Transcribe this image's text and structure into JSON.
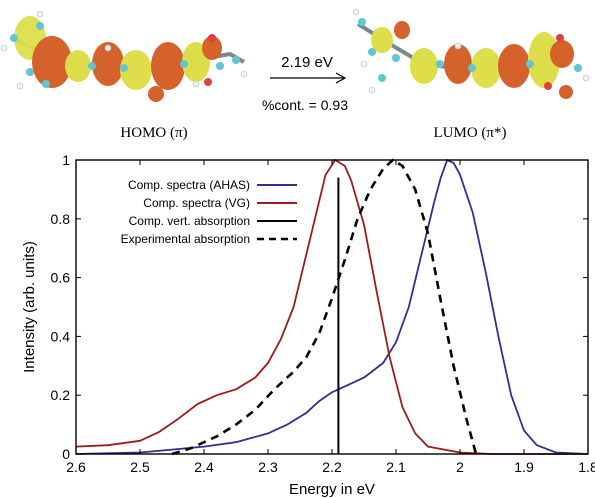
{
  "header": {
    "transition_label": "2.19 eV",
    "contribution_label": "%cont. = 0.93",
    "homo_label": "HOMO (π)",
    "lumo_label": "LUMO (π*)"
  },
  "colors": {
    "ahas": "#2f2f96",
    "vg": "#9a1c1c",
    "vertical": "#000000",
    "experimental": "#000000",
    "orbital_orange": "#d4622a",
    "orbital_yellow": "#dede4a",
    "atom_carbon": "#5fc6d4",
    "atom_oxygen": "#e04040",
    "atom_hydrogen": "#f2f2f2"
  },
  "chart_data": {
    "type": "line",
    "title": "",
    "xlabel": "Energy in eV",
    "ylabel": "Intensity (arb. units)",
    "xlim": [
      2.6,
      1.8
    ],
    "ylim": [
      0,
      1
    ],
    "x_reversed": true,
    "x_ticks": [
      "2.6",
      "2.5",
      "2.4",
      "2.3",
      "2.2",
      "2.1",
      "2",
      "1.9",
      "1.8"
    ],
    "y_ticks": [
      "0",
      "0.2",
      "0.4",
      "0.6",
      "0.8",
      "1"
    ],
    "grid": false,
    "legend_position": "top-left",
    "legend": [
      {
        "label": "Comp. spectra (AHAS)",
        "style": "solid",
        "color": "#2f2f96"
      },
      {
        "label": "Comp. spectra (VG)",
        "style": "solid",
        "color": "#9a1c1c"
      },
      {
        "label": "Comp. vert. absorption",
        "style": "solid",
        "color": "#000000"
      },
      {
        "label": "Experimental absorption",
        "style": "dashed",
        "color": "#000000"
      }
    ],
    "series": [
      {
        "name": "Comp. spectra (AHAS)",
        "style": "solid",
        "color": "#2f2f96",
        "points": [
          [
            2.6,
            0.0
          ],
          [
            2.5,
            0.005
          ],
          [
            2.45,
            0.015
          ],
          [
            2.4,
            0.025
          ],
          [
            2.35,
            0.04
          ],
          [
            2.3,
            0.07
          ],
          [
            2.27,
            0.1
          ],
          [
            2.24,
            0.14
          ],
          [
            2.22,
            0.18
          ],
          [
            2.2,
            0.21
          ],
          [
            2.18,
            0.23
          ],
          [
            2.15,
            0.26
          ],
          [
            2.12,
            0.31
          ],
          [
            2.1,
            0.38
          ],
          [
            2.08,
            0.5
          ],
          [
            2.06,
            0.68
          ],
          [
            2.04,
            0.86
          ],
          [
            2.03,
            0.94
          ],
          [
            2.02,
            1.0
          ],
          [
            2.01,
            0.99
          ],
          [
            2.0,
            0.95
          ],
          [
            1.98,
            0.82
          ],
          [
            1.96,
            0.62
          ],
          [
            1.94,
            0.4
          ],
          [
            1.92,
            0.2
          ],
          [
            1.9,
            0.08
          ],
          [
            1.88,
            0.03
          ],
          [
            1.85,
            0.005
          ],
          [
            1.8,
            0.0
          ]
        ]
      },
      {
        "name": "Comp. spectra (VG)",
        "style": "solid",
        "color": "#9a1c1c",
        "points": [
          [
            2.6,
            0.025
          ],
          [
            2.55,
            0.03
          ],
          [
            2.5,
            0.045
          ],
          [
            2.47,
            0.075
          ],
          [
            2.44,
            0.12
          ],
          [
            2.41,
            0.17
          ],
          [
            2.38,
            0.2
          ],
          [
            2.35,
            0.22
          ],
          [
            2.32,
            0.26
          ],
          [
            2.3,
            0.31
          ],
          [
            2.28,
            0.39
          ],
          [
            2.26,
            0.5
          ],
          [
            2.24,
            0.68
          ],
          [
            2.22,
            0.86
          ],
          [
            2.21,
            0.95
          ],
          [
            2.195,
            1.0
          ],
          [
            2.18,
            0.98
          ],
          [
            2.17,
            0.93
          ],
          [
            2.15,
            0.78
          ],
          [
            2.13,
            0.55
          ],
          [
            2.11,
            0.33
          ],
          [
            2.09,
            0.16
          ],
          [
            2.07,
            0.07
          ],
          [
            2.05,
            0.025
          ],
          [
            2.0,
            0.005
          ],
          [
            1.95,
            0.0
          ],
          [
            1.8,
            0.0
          ]
        ]
      },
      {
        "name": "Experimental absorption",
        "style": "dashed",
        "color": "#000000",
        "points": [
          [
            2.45,
            0.0
          ],
          [
            2.42,
            0.02
          ],
          [
            2.38,
            0.06
          ],
          [
            2.35,
            0.1
          ],
          [
            2.32,
            0.15
          ],
          [
            2.29,
            0.22
          ],
          [
            2.26,
            0.28
          ],
          [
            2.24,
            0.33
          ],
          [
            2.22,
            0.41
          ],
          [
            2.2,
            0.53
          ],
          [
            2.18,
            0.66
          ],
          [
            2.16,
            0.8
          ],
          [
            2.14,
            0.9
          ],
          [
            2.12,
            0.97
          ],
          [
            2.105,
            1.0
          ],
          [
            2.09,
            0.98
          ],
          [
            2.07,
            0.9
          ],
          [
            2.05,
            0.75
          ],
          [
            2.03,
            0.52
          ],
          [
            2.01,
            0.3
          ],
          [
            1.99,
            0.12
          ],
          [
            1.98,
            0.04
          ],
          [
            1.975,
            0.0
          ]
        ]
      }
    ],
    "vertical_lines": [
      {
        "name": "Comp. vert. absorption",
        "x": 2.19,
        "y0": 0,
        "y1": 0.94,
        "color": "#000000"
      }
    ]
  }
}
